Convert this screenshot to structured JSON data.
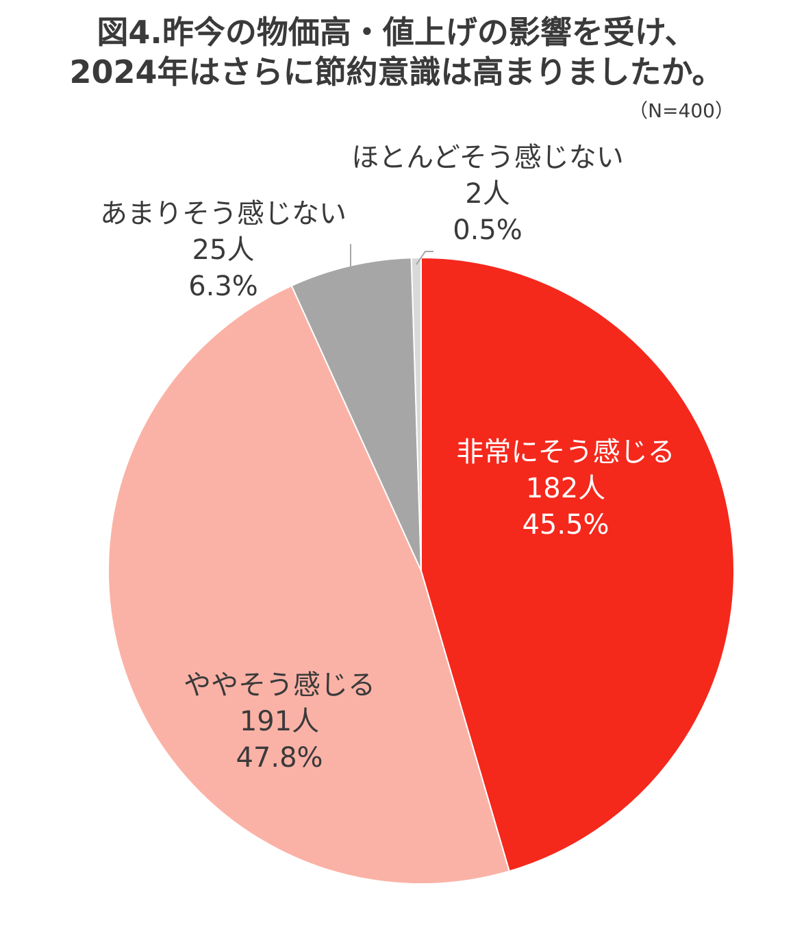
{
  "title_lines": [
    "図4.昨今の物価高・値上げの影響を受け、",
    "2024年はさらに節約意識は高まりましたか。"
  ],
  "sample_size": "（N=400）",
  "chart_data": {
    "type": "pie",
    "title": "図4.昨今の物価高・値上げの影響を受け、2024年はさらに節約意識は高まりましたか。",
    "slices": [
      {
        "label": "非常にそう感じる",
        "count_label": "182人",
        "count": 182,
        "percent_label": "45.5%",
        "percent": 45.5,
        "color": "#f5281c",
        "text_color": "#ffffff"
      },
      {
        "label": "ややそう感じる",
        "count_label": "191人",
        "count": 191,
        "percent_label": "47.8%",
        "percent": 47.8,
        "color": "#fbb2a6",
        "text_color": "#3a3a3a"
      },
      {
        "label": "あまりそう感じない",
        "count_label": "25人",
        "count": 25,
        "percent_label": "6.3%",
        "percent": 6.3,
        "color": "#a6a6a6",
        "text_color": "#3a3a3a"
      },
      {
        "label": "ほとんどそう感じない",
        "count_label": "2人",
        "count": 2,
        "percent_label": "0.5%",
        "percent": 0.5,
        "color": "#d9d9d9",
        "text_color": "#3a3a3a"
      }
    ],
    "start_angle": "12 o'clock",
    "direction": "clockwise"
  }
}
